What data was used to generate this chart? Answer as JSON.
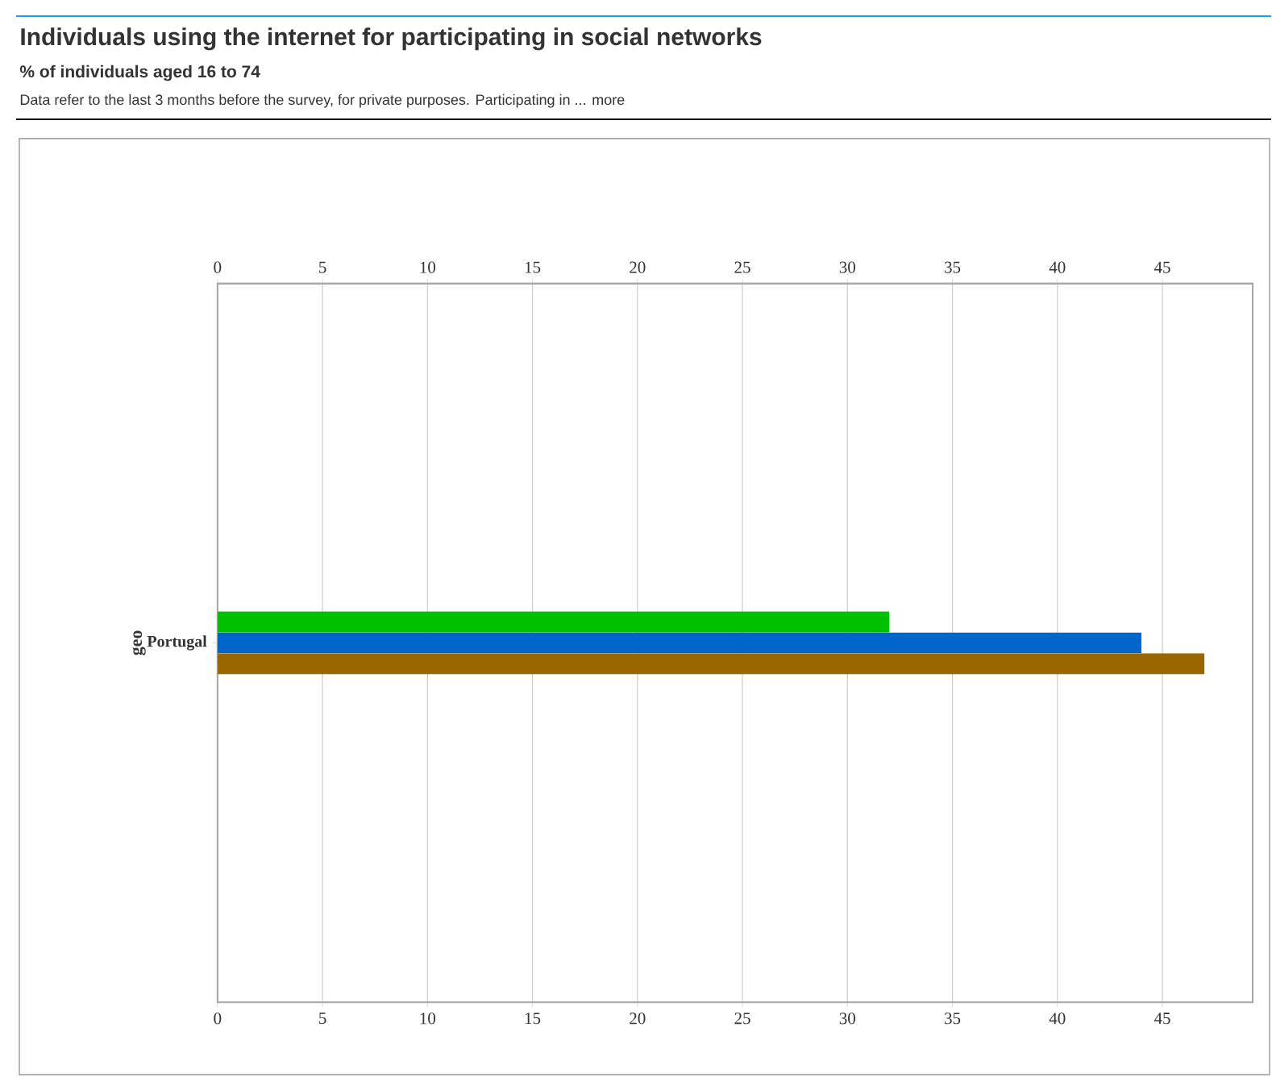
{
  "chart_data": {
    "type": "bar",
    "orientation": "horizontal",
    "title": "Individuals using the internet for participating in social networks",
    "subtitle": "% of individuals aged 16 to 74",
    "annotations": [
      "Data refer to the last 3 months before the survey, for private purposes. Participating in ... more"
    ],
    "ylabel": "geo",
    "categories": [
      "Portugal"
    ],
    "series": [
      {
        "color": "#00c000",
        "values": [
          32
        ]
      },
      {
        "color": "#0066cc",
        "values": [
          44
        ]
      },
      {
        "color": "#996600",
        "values": [
          47
        ]
      }
    ],
    "xlim": [
      0,
      49.3
    ],
    "xticks": [
      0,
      5,
      10,
      15,
      20,
      25,
      30,
      35,
      40,
      45
    ],
    "x2lim": [
      0,
      49.3
    ],
    "x2ticks": [
      0,
      5,
      10,
      15,
      20,
      25,
      30,
      35,
      40,
      45
    ],
    "grid": "x"
  }
}
